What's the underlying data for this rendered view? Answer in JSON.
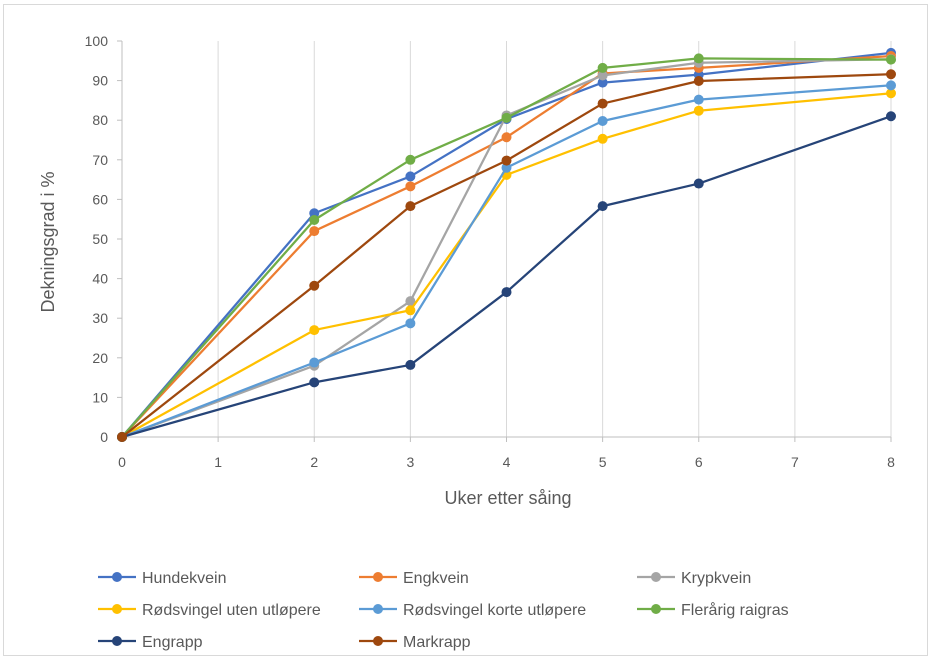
{
  "chart_data": {
    "type": "line",
    "title": "",
    "xlabel": "Uker etter såing",
    "ylabel": "Dekningsgrad i %",
    "xlim": [
      0,
      8
    ],
    "ylim": [
      0,
      100
    ],
    "x_ticks": [
      0,
      1,
      2,
      3,
      4,
      5,
      6,
      7,
      8
    ],
    "y_ticks": [
      0,
      10,
      20,
      30,
      40,
      50,
      60,
      70,
      80,
      90,
      100
    ],
    "grid": "vertical",
    "legend_position": "bottom",
    "series": [
      {
        "name": "Hundekvein",
        "color": "#4472C4",
        "points": [
          [
            0,
            0
          ],
          [
            2,
            56.5
          ],
          [
            3,
            65.8
          ],
          [
            4,
            80.3
          ],
          [
            5,
            89.5
          ],
          [
            6,
            91.5
          ],
          [
            8,
            97
          ]
        ]
      },
      {
        "name": "Engkvein",
        "color": "#ED7D31",
        "points": [
          [
            0,
            0
          ],
          [
            2,
            52
          ],
          [
            3,
            63.3
          ],
          [
            4,
            75.7
          ],
          [
            5,
            91.8
          ],
          [
            6,
            93.2
          ],
          [
            8,
            96.2
          ]
        ]
      },
      {
        "name": "Krypkvein",
        "color": "#A5A5A5",
        "points": [
          [
            0,
            0
          ],
          [
            2,
            18
          ],
          [
            3,
            34.3
          ],
          [
            4,
            81.2
          ],
          [
            5,
            91.3
          ],
          [
            6,
            94.5
          ],
          [
            8,
            95.4
          ]
        ]
      },
      {
        "name": "Rødsvingel uten utløpere",
        "color": "#FFC000",
        "points": [
          [
            0,
            0
          ],
          [
            2,
            27
          ],
          [
            3,
            32
          ],
          [
            4,
            66.2
          ],
          [
            5,
            75.3
          ],
          [
            6,
            82.4
          ],
          [
            8,
            86.8
          ]
        ]
      },
      {
        "name": "Rødsvingel korte utløpere",
        "color": "#5B9BD5",
        "points": [
          [
            0,
            0
          ],
          [
            2,
            18.8
          ],
          [
            3,
            28.7
          ],
          [
            4,
            68
          ],
          [
            5,
            79.8
          ],
          [
            6,
            85.2
          ],
          [
            8,
            88.8
          ]
        ]
      },
      {
        "name": "Flerårig raigras",
        "color": "#70AD47",
        "points": [
          [
            0,
            0
          ],
          [
            2,
            54.8
          ],
          [
            3,
            70
          ],
          [
            4,
            80.6
          ],
          [
            5,
            93.2
          ],
          [
            6,
            95.6
          ],
          [
            8,
            95.3
          ]
        ]
      },
      {
        "name": "Engrapp",
        "color": "#264478",
        "points": [
          [
            0,
            0
          ],
          [
            2,
            13.8
          ],
          [
            3,
            18.2
          ],
          [
            4,
            36.6
          ],
          [
            5,
            58.3
          ],
          [
            6,
            64
          ],
          [
            8,
            81
          ]
        ]
      },
      {
        "name": "Markrapp",
        "color": "#9E480E",
        "points": [
          [
            0,
            0
          ],
          [
            2,
            38.2
          ],
          [
            3,
            58.3
          ],
          [
            4,
            69.8
          ],
          [
            5,
            84.2
          ],
          [
            6,
            89.9
          ],
          [
            8,
            91.6
          ]
        ]
      }
    ]
  }
}
